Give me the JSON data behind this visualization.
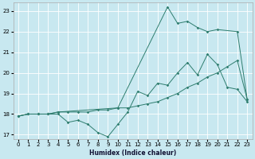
{
  "xlabel": "Humidex (Indice chaleur)",
  "bg_color": "#c8e8f0",
  "grid_color": "#ffffff",
  "line_color": "#2e7d6e",
  "xlim": [
    -0.5,
    23.5
  ],
  "ylim": [
    16.8,
    23.4
  ],
  "yticks": [
    17,
    18,
    19,
    20,
    21,
    22,
    23
  ],
  "xticks": [
    0,
    1,
    2,
    3,
    4,
    5,
    6,
    7,
    8,
    9,
    10,
    11,
    12,
    13,
    14,
    15,
    16,
    17,
    18,
    19,
    20,
    21,
    22,
    23
  ],
  "line1_x": [
    0,
    1,
    2,
    3,
    4,
    5,
    6,
    7,
    8,
    9,
    10,
    11,
    12,
    13,
    14,
    15,
    16,
    17,
    18,
    19,
    20,
    21,
    22,
    23
  ],
  "line1_y": [
    17.9,
    18.0,
    18.0,
    18.0,
    18.0,
    17.6,
    17.7,
    17.5,
    17.1,
    16.9,
    17.5,
    18.1,
    19.1,
    18.9,
    19.5,
    19.4,
    20.0,
    20.5,
    19.9,
    20.9,
    20.4,
    19.3,
    19.2,
    18.6
  ],
  "line2_x": [
    0,
    1,
    2,
    3,
    4,
    5,
    6,
    7,
    8,
    9,
    10,
    11,
    12,
    13,
    14,
    15,
    16,
    17,
    18,
    19,
    20,
    21,
    22,
    23
  ],
  "line2_y": [
    17.9,
    18.0,
    18.0,
    18.0,
    18.1,
    18.1,
    18.1,
    18.1,
    18.2,
    18.2,
    18.3,
    18.3,
    18.4,
    18.5,
    18.6,
    18.8,
    19.0,
    19.3,
    19.5,
    19.8,
    20.0,
    20.3,
    20.6,
    18.7
  ],
  "line3_x": [
    0,
    1,
    2,
    3,
    4,
    10,
    15,
    16,
    17,
    18,
    19,
    20,
    22,
    23
  ],
  "line3_y": [
    17.9,
    18.0,
    18.0,
    18.0,
    18.1,
    18.3,
    23.2,
    22.4,
    22.5,
    22.2,
    22.0,
    22.1,
    22.0,
    18.7
  ]
}
